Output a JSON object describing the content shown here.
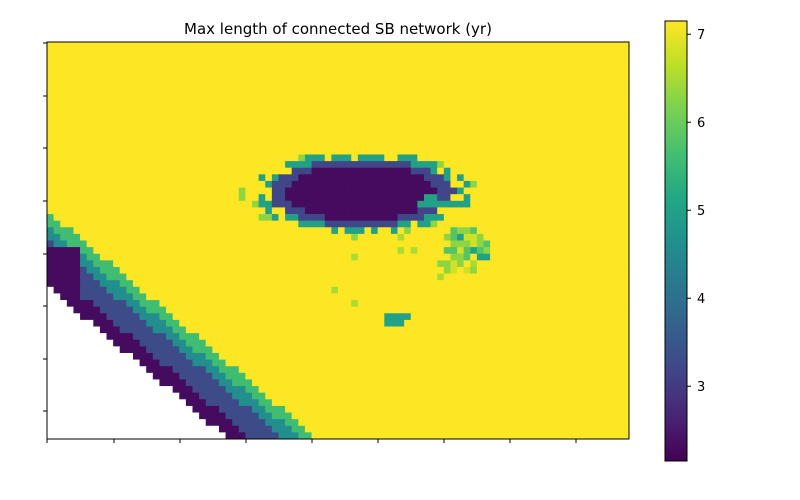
{
  "chart_data": {
    "type": "heatmap",
    "title": "Max length of connected SB network (yr)",
    "xlabel": "",
    "ylabel": "",
    "colormap": "viridis",
    "missing_color": "#ffffff",
    "colorbar": {
      "location": "right",
      "range": [
        2.15,
        7.15
      ],
      "ticks": [
        3,
        4,
        5,
        6,
        7
      ],
      "tick_labels": [
        "3",
        "4",
        "5",
        "6",
        "7"
      ]
    },
    "axes": {
      "tick_labels_shown": false,
      "grid": false
    },
    "grid_shape": [
      60,
      88
    ],
    "background_value": 7.15,
    "regions": [
      {
        "name": "coastal band",
        "description": "diagonal band along lower-left edge",
        "values": [
          2.3,
          3.3,
          4.6,
          5.6
        ]
      },
      {
        "name": "northern arc",
        "description": "dark arc with green fringe",
        "values": [
          2.3,
          3.2,
          5.0,
          6.3
        ]
      },
      {
        "name": "eastern patch",
        "description": "scattered green cells",
        "values": [
          5.0,
          5.8,
          6.3,
          6.8
        ]
      },
      {
        "name": "central patch",
        "description": "small teal blob",
        "values": [
          5.0
        ]
      },
      {
        "name": "scattered cells",
        "description": "isolated light-green cells",
        "values": [
          6.5,
          6.8
        ]
      },
      {
        "name": "no-data area",
        "description": "white area at lower left",
        "values": []
      }
    ]
  }
}
